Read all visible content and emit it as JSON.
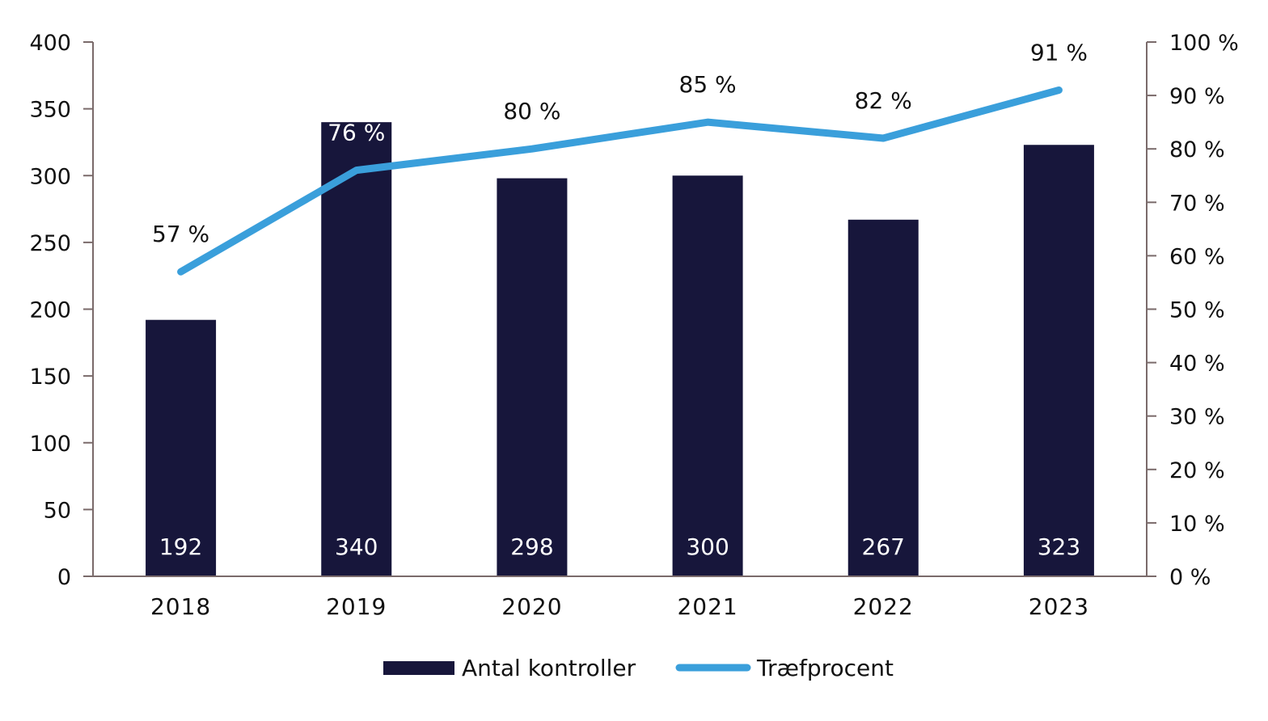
{
  "chart_data": {
    "type": "bar",
    "categories": [
      "2018",
      "2019",
      "2020",
      "2021",
      "2022",
      "2023"
    ],
    "series": [
      {
        "name": "Antal kontroller",
        "type": "bar",
        "axis": "left",
        "color": "#17163b",
        "values": [
          192,
          340,
          298,
          300,
          267,
          323
        ],
        "labels": [
          "192",
          "340",
          "298",
          "300",
          "267",
          "323"
        ]
      },
      {
        "name": "Træfprocent",
        "type": "line",
        "axis": "right",
        "color": "#3a9fdb",
        "values": [
          57,
          76,
          80,
          85,
          82,
          91
        ],
        "labels": [
          "57 %",
          "76 %",
          "80 %",
          "85 %",
          "82 %",
          "91 %"
        ]
      }
    ],
    "y_left": {
      "ylim": [
        0,
        400
      ],
      "ticks": [
        "0",
        "50",
        "100",
        "150",
        "200",
        "250",
        "300",
        "350",
        "400"
      ]
    },
    "y_right": {
      "ylim": [
        0,
        100
      ],
      "ticks": [
        "0 %",
        "10 %",
        "20 %",
        "30 %",
        "40 %",
        "50 %",
        "60 %",
        "70 %",
        "80 %",
        "90 %",
        "100 %"
      ]
    },
    "grid": false,
    "legend": "bottom"
  }
}
